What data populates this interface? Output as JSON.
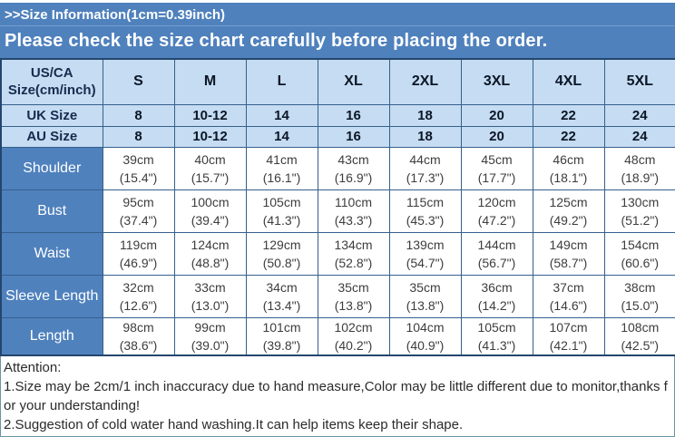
{
  "banner": {
    "title": ">>Size Information(1cm=0.39inch)",
    "subtitle": "Please check the size chart carefully before placing the order."
  },
  "table": {
    "corner_label": "US/CA Size(cm/inch)",
    "size_headers": [
      "S",
      "M",
      "L",
      "XL",
      "2XL",
      "3XL",
      "4XL",
      "5XL"
    ],
    "uk": {
      "label": "UK Size",
      "values": [
        "8",
        "10-12",
        "14",
        "16",
        "18",
        "20",
        "22",
        "24"
      ]
    },
    "au": {
      "label": "AU Size",
      "values": [
        "8",
        "10-12",
        "14",
        "16",
        "18",
        "20",
        "22",
        "24"
      ]
    },
    "rows": [
      {
        "label": "Shoulder",
        "cm": [
          "39cm",
          "40cm",
          "41cm",
          "43cm",
          "44cm",
          "45cm",
          "46cm",
          "48cm"
        ],
        "in": [
          "(15.4\")",
          "(15.7\")",
          "(16.1\")",
          "(16.9\")",
          "(17.3\")",
          "(17.7\")",
          "(18.1\")",
          "(18.9\")"
        ]
      },
      {
        "label": "Bust",
        "cm": [
          "95cm",
          "100cm",
          "105cm",
          "110cm",
          "115cm",
          "120cm",
          "125cm",
          "130cm"
        ],
        "in": [
          "(37.4\")",
          "(39.4\")",
          "(41.3\")",
          "(43.3\")",
          "(45.3\")",
          "(47.2\")",
          "(49.2\")",
          "(51.2\")"
        ]
      },
      {
        "label": "Waist",
        "cm": [
          "119cm",
          "124cm",
          "129cm",
          "134cm",
          "139cm",
          "144cm",
          "149cm",
          "154cm"
        ],
        "in": [
          "(46.9\")",
          "(48.8\")",
          "(50.8\")",
          "(52.8\")",
          "(54.7\")",
          "(56.7\")",
          "(58.7\")",
          "(60.6\")"
        ]
      },
      {
        "label": "Sleeve Length",
        "cm": [
          "32cm",
          "33cm",
          "34cm",
          "35cm",
          "35cm",
          "36cm",
          "37cm",
          "38cm"
        ],
        "in": [
          "(12.6\")",
          "(13.0\")",
          "(13.4\")",
          "(13.8\")",
          "(13.8\")",
          "(14.2\")",
          "(14.6\")",
          "(15.0\")"
        ]
      },
      {
        "label": "Length",
        "cm": [
          "98cm",
          "99cm",
          "101cm",
          "102cm",
          "104cm",
          "105cm",
          "107cm",
          "108cm"
        ],
        "in": [
          "(38.6\")",
          "(39.0\")",
          "(39.8\")",
          "(40.2\")",
          "(40.9\")",
          "(41.3\")",
          "(42.1\")",
          "(42.5\")"
        ]
      }
    ]
  },
  "attention": {
    "heading": "Attention:",
    "line1": "1.Size may be 2cm/1 inch inaccuracy due to hand measure,Color may be little different due to monitor,thanks for your understanding!",
    "line2": "2.Suggestion of cold water hand washing.It can help items keep their shape."
  },
  "colors": {
    "banner_blue": "#4F81BD",
    "header_light_blue": "#C5DCF2",
    "label_column_blue": "#4F81BD",
    "table_border_navy": "#24466E",
    "attention_border_teal": "#6C95A5"
  }
}
